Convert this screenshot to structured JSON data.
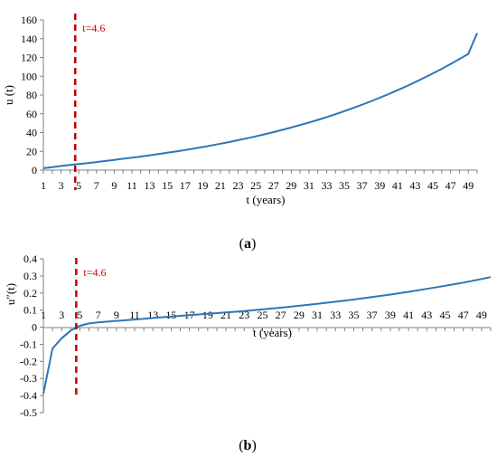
{
  "chart_data": [
    {
      "panel_label": "(a)",
      "type": "line",
      "xlabel": "t (years)",
      "ylabel": "u (t)",
      "xlim": [
        1,
        50
      ],
      "ylim": [
        0,
        160
      ],
      "y_ticks": [
        "0",
        "20",
        "40",
        "60",
        "80",
        "100",
        "120",
        "140",
        "160"
      ],
      "x_tick_labels": [
        "1",
        "3",
        "5",
        "7",
        "9",
        "11",
        "13",
        "15",
        "17",
        "19",
        "21",
        "23",
        "25",
        "27",
        "29",
        "31",
        "33",
        "35",
        "37",
        "39",
        "41",
        "43",
        "45",
        "47",
        "49"
      ],
      "grid": false,
      "line_color": "#2e75b6",
      "marker": {
        "x": 4.6,
        "label": "t=4.6",
        "color": "#c00000"
      },
      "series": [
        {
          "x": [
            1,
            2,
            3,
            4,
            5,
            6,
            7,
            8,
            9,
            10,
            11,
            12,
            13,
            14,
            15,
            16,
            17,
            18,
            19,
            20,
            21,
            22,
            23,
            24,
            25,
            26,
            27,
            28,
            29,
            30,
            31,
            32,
            33,
            34,
            35,
            36,
            37,
            38,
            39,
            40,
            41,
            42,
            43,
            44,
            45,
            46,
            47,
            48,
            49,
            50
          ],
          "values": [
            2.0,
            3.2,
            4.4,
            5.5,
            6.5,
            7.5,
            8.6,
            9.7,
            10.9,
            12.1,
            13.3,
            14.5,
            15.8,
            17.1,
            18.5,
            19.9,
            21.4,
            23.0,
            24.6,
            26.3,
            28.1,
            29.9,
            31.9,
            33.9,
            36.0,
            38.2,
            40.5,
            42.9,
            45.4,
            48.0,
            50.7,
            53.5,
            56.5,
            59.6,
            62.8,
            66.2,
            69.7,
            73.3,
            77.1,
            81.0,
            85.1,
            89.3,
            93.7,
            98.3,
            103.0,
            107.9,
            113.0,
            118.3,
            123.8,
            146.0
          ]
        }
      ]
    },
    {
      "panel_label": "(b)",
      "type": "line",
      "xlabel": "t (years)",
      "ylabel": "u″(t)",
      "xlim": [
        1,
        50
      ],
      "ylim": [
        -0.5,
        0.4
      ],
      "y_ticks": [
        "-0.5",
        "-0.4",
        "-0.3",
        "-0.2",
        "-0.1",
        "0",
        "0.1",
        "0.2",
        "0.3",
        "0.4"
      ],
      "x_tick_labels": [
        "1",
        "3",
        "5",
        "7",
        "9",
        "11",
        "13",
        "15",
        "17",
        "19",
        "21",
        "23",
        "25",
        "27",
        "29",
        "31",
        "33",
        "35",
        "37",
        "39",
        "41",
        "43",
        "45",
        "47",
        "49"
      ],
      "grid": false,
      "line_color": "#2e75b6",
      "marker": {
        "x": 4.6,
        "label": "t=4.6",
        "color": "#c00000"
      },
      "series": [
        {
          "x": [
            1,
            2,
            3,
            4,
            5,
            6,
            7,
            9,
            11,
            13,
            15,
            17,
            19,
            21,
            23,
            25,
            27,
            29,
            31,
            33,
            35,
            37,
            39,
            41,
            43,
            45,
            47,
            49,
            50
          ],
          "values": [
            -0.39,
            -0.125,
            -0.065,
            -0.02,
            0.008,
            0.022,
            0.028,
            0.037,
            0.045,
            0.054,
            0.062,
            0.07,
            0.078,
            0.086,
            0.094,
            0.104,
            0.114,
            0.125,
            0.137,
            0.149,
            0.162,
            0.176,
            0.191,
            0.207,
            0.224,
            0.242,
            0.261,
            0.282,
            0.293
          ]
        }
      ]
    }
  ]
}
